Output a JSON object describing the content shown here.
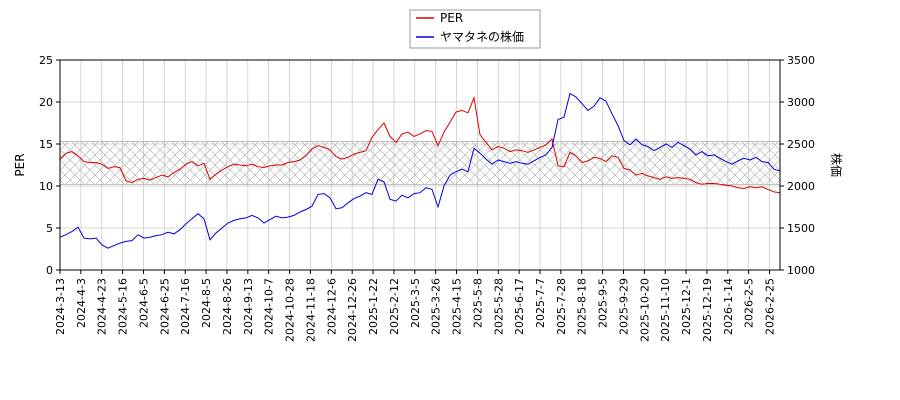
{
  "chart_data": {
    "type": "line",
    "x_tick_labels": [
      "2024-3-13",
      "2024-4-3",
      "2024-4-23",
      "2024-5-16",
      "2024-6-5",
      "2024-6-25",
      "2024-7-16",
      "2024-8-5",
      "2024-8-26",
      "2024-9-13",
      "2024-10-7",
      "2024-10-28",
      "2024-11-18",
      "2024-12-6",
      "2024-12-26",
      "2025-1-22",
      "2025-2-12",
      "2025-3-5",
      "2025-3-26",
      "2025-4-15",
      "2025-5-8",
      "2025-5-28",
      "2025-6-17",
      "2025-7-7",
      "2025-7-28",
      "2025-8-18",
      "2025-9-5",
      "2025-9-29",
      "2025-10-20",
      "2025-11-10",
      "2025-12-1",
      "2025-12-19",
      "2026-1-14",
      "2026-2-5",
      "2026-2-25"
    ],
    "y_left": {
      "label": "PER",
      "ticks": [
        0,
        5,
        10,
        15,
        20,
        25
      ],
      "lim": [
        0,
        25
      ]
    },
    "y_right": {
      "label": "株価",
      "ticks": [
        1000,
        1500,
        2000,
        2500,
        3000,
        3500
      ],
      "lim": [
        1000,
        3500
      ]
    },
    "band": {
      "y_from": 10.2,
      "y_to": 15.3,
      "axis": "left",
      "pattern": "crosshatch"
    },
    "grid": true,
    "legend_position": "top-center",
    "series": [
      {
        "name": "PER",
        "axis": "left",
        "color": "#dd0000",
        "points": [
          [
            0,
            13.2
          ],
          [
            1,
            13.9
          ],
          [
            2,
            14.1
          ],
          [
            3,
            13.6
          ],
          [
            4,
            12.9
          ],
          [
            5,
            12.8
          ],
          [
            6,
            12.8
          ],
          [
            7,
            12.6
          ],
          [
            8,
            12.1
          ],
          [
            9,
            12.3
          ],
          [
            10,
            12.2
          ],
          [
            11,
            10.6
          ],
          [
            12,
            10.4
          ],
          [
            13,
            10.8
          ],
          [
            14,
            10.9
          ],
          [
            15,
            10.7
          ],
          [
            16,
            11.0
          ],
          [
            17,
            11.3
          ],
          [
            18,
            11.1
          ],
          [
            19,
            11.6
          ],
          [
            20,
            12.0
          ],
          [
            21,
            12.6
          ],
          [
            22,
            12.9
          ],
          [
            23,
            12.4
          ],
          [
            24,
            12.7
          ],
          [
            25,
            10.8
          ],
          [
            26,
            11.4
          ],
          [
            27,
            11.9
          ],
          [
            28,
            12.3
          ],
          [
            29,
            12.6
          ],
          [
            30,
            12.5
          ],
          [
            31,
            12.4
          ],
          [
            32,
            12.6
          ],
          [
            33,
            12.3
          ],
          [
            34,
            12.2
          ],
          [
            35,
            12.4
          ],
          [
            36,
            12.5
          ],
          [
            37,
            12.5
          ],
          [
            38,
            12.8
          ],
          [
            39,
            12.9
          ],
          [
            40,
            13.1
          ],
          [
            41,
            13.6
          ],
          [
            42,
            14.4
          ],
          [
            43,
            14.8
          ],
          [
            44,
            14.6
          ],
          [
            45,
            14.3
          ],
          [
            46,
            13.5
          ],
          [
            47,
            13.2
          ],
          [
            48,
            13.4
          ],
          [
            49,
            13.8
          ],
          [
            50,
            14.0
          ],
          [
            51,
            14.2
          ],
          [
            52,
            15.8
          ],
          [
            53,
            16.7
          ],
          [
            54,
            17.5
          ],
          [
            55,
            15.9
          ],
          [
            56,
            15.2
          ],
          [
            57,
            16.2
          ],
          [
            58,
            16.4
          ],
          [
            59,
            15.9
          ],
          [
            60,
            16.2
          ],
          [
            61,
            16.6
          ],
          [
            62,
            16.5
          ],
          [
            63,
            14.8
          ],
          [
            64,
            16.4
          ],
          [
            65,
            17.6
          ],
          [
            66,
            18.8
          ],
          [
            67,
            19.0
          ],
          [
            68,
            18.7
          ],
          [
            69,
            20.5
          ],
          [
            70,
            16.1
          ],
          [
            71,
            15.2
          ],
          [
            72,
            14.3
          ],
          [
            73,
            14.7
          ],
          [
            74,
            14.5
          ],
          [
            75,
            14.1
          ],
          [
            76,
            14.3
          ],
          [
            77,
            14.2
          ],
          [
            78,
            14.0
          ],
          [
            79,
            14.3
          ],
          [
            80,
            14.6
          ],
          [
            81,
            14.9
          ],
          [
            82,
            15.6
          ],
          [
            83,
            12.4
          ],
          [
            84,
            12.3
          ],
          [
            85,
            14.0
          ],
          [
            86,
            13.6
          ],
          [
            87,
            12.8
          ],
          [
            88,
            13.0
          ],
          [
            89,
            13.4
          ],
          [
            90,
            13.3
          ],
          [
            91,
            12.9
          ],
          [
            92,
            13.6
          ],
          [
            93,
            13.4
          ],
          [
            94,
            12.1
          ],
          [
            95,
            11.9
          ],
          [
            96,
            11.3
          ],
          [
            97,
            11.5
          ],
          [
            98,
            11.2
          ],
          [
            99,
            11.0
          ],
          [
            100,
            10.8
          ],
          [
            101,
            11.1
          ],
          [
            102,
            10.9
          ],
          [
            103,
            11.0
          ],
          [
            104,
            10.9
          ],
          [
            105,
            10.8
          ],
          [
            106,
            10.4
          ],
          [
            107,
            10.2
          ],
          [
            108,
            10.3
          ],
          [
            109,
            10.3
          ],
          [
            110,
            10.2
          ],
          [
            111,
            10.1
          ],
          [
            112,
            10.0
          ],
          [
            113,
            9.8
          ],
          [
            114,
            9.7
          ],
          [
            115,
            9.9
          ],
          [
            116,
            9.8
          ],
          [
            117,
            9.9
          ],
          [
            118,
            9.6
          ],
          [
            119,
            9.3
          ],
          [
            120,
            9.2
          ]
        ]
      },
      {
        "name": "ヤマタネの株価",
        "axis": "right",
        "color": "#0000dd",
        "points": [
          [
            0,
            1390
          ],
          [
            1,
            1420
          ],
          [
            2,
            1460
          ],
          [
            3,
            1510
          ],
          [
            4,
            1380
          ],
          [
            5,
            1370
          ],
          [
            6,
            1380
          ],
          [
            7,
            1300
          ],
          [
            8,
            1260
          ],
          [
            9,
            1290
          ],
          [
            10,
            1320
          ],
          [
            11,
            1340
          ],
          [
            12,
            1350
          ],
          [
            13,
            1420
          ],
          [
            14,
            1380
          ],
          [
            15,
            1390
          ],
          [
            16,
            1410
          ],
          [
            17,
            1420
          ],
          [
            18,
            1450
          ],
          [
            19,
            1430
          ],
          [
            20,
            1480
          ],
          [
            21,
            1550
          ],
          [
            22,
            1610
          ],
          [
            23,
            1670
          ],
          [
            24,
            1610
          ],
          [
            25,
            1360
          ],
          [
            26,
            1440
          ],
          [
            27,
            1500
          ],
          [
            28,
            1560
          ],
          [
            29,
            1590
          ],
          [
            30,
            1610
          ],
          [
            31,
            1620
          ],
          [
            32,
            1650
          ],
          [
            33,
            1620
          ],
          [
            34,
            1560
          ],
          [
            35,
            1600
          ],
          [
            36,
            1640
          ],
          [
            37,
            1620
          ],
          [
            38,
            1630
          ],
          [
            39,
            1650
          ],
          [
            40,
            1690
          ],
          [
            41,
            1720
          ],
          [
            42,
            1760
          ],
          [
            43,
            1900
          ],
          [
            44,
            1910
          ],
          [
            45,
            1860
          ],
          [
            46,
            1730
          ],
          [
            47,
            1740
          ],
          [
            48,
            1800
          ],
          [
            49,
            1850
          ],
          [
            50,
            1880
          ],
          [
            51,
            1920
          ],
          [
            52,
            1900
          ],
          [
            53,
            2080
          ],
          [
            54,
            2050
          ],
          [
            55,
            1840
          ],
          [
            56,
            1820
          ],
          [
            57,
            1890
          ],
          [
            58,
            1860
          ],
          [
            59,
            1910
          ],
          [
            60,
            1920
          ],
          [
            61,
            1980
          ],
          [
            62,
            1960
          ],
          [
            63,
            1750
          ],
          [
            64,
            2000
          ],
          [
            65,
            2130
          ],
          [
            66,
            2170
          ],
          [
            67,
            2200
          ],
          [
            68,
            2170
          ],
          [
            69,
            2450
          ],
          [
            70,
            2390
          ],
          [
            71,
            2320
          ],
          [
            72,
            2260
          ],
          [
            73,
            2310
          ],
          [
            74,
            2290
          ],
          [
            75,
            2270
          ],
          [
            76,
            2290
          ],
          [
            77,
            2270
          ],
          [
            78,
            2260
          ],
          [
            79,
            2300
          ],
          [
            80,
            2340
          ],
          [
            81,
            2370
          ],
          [
            82,
            2460
          ],
          [
            83,
            2790
          ],
          [
            84,
            2820
          ],
          [
            85,
            3100
          ],
          [
            86,
            3060
          ],
          [
            87,
            2980
          ],
          [
            88,
            2900
          ],
          [
            89,
            2950
          ],
          [
            90,
            3050
          ],
          [
            91,
            3010
          ],
          [
            92,
            2860
          ],
          [
            93,
            2720
          ],
          [
            94,
            2540
          ],
          [
            95,
            2490
          ],
          [
            96,
            2560
          ],
          [
            97,
            2490
          ],
          [
            98,
            2470
          ],
          [
            99,
            2420
          ],
          [
            100,
            2460
          ],
          [
            101,
            2500
          ],
          [
            102,
            2460
          ],
          [
            103,
            2520
          ],
          [
            104,
            2480
          ],
          [
            105,
            2440
          ],
          [
            106,
            2370
          ],
          [
            107,
            2410
          ],
          [
            108,
            2360
          ],
          [
            109,
            2370
          ],
          [
            110,
            2330
          ],
          [
            111,
            2290
          ],
          [
            112,
            2260
          ],
          [
            113,
            2300
          ],
          [
            114,
            2330
          ],
          [
            115,
            2310
          ],
          [
            116,
            2340
          ],
          [
            117,
            2290
          ],
          [
            118,
            2280
          ],
          [
            119,
            2200
          ],
          [
            120,
            2180
          ]
        ]
      }
    ]
  }
}
